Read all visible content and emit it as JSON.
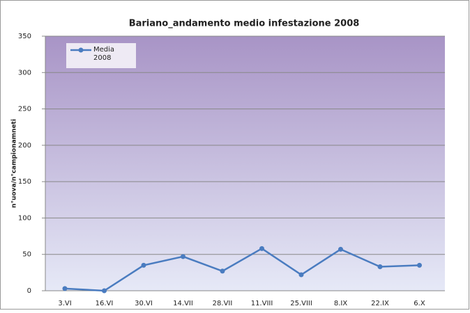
{
  "chart_data": {
    "type": "line",
    "title": "Bariano_andamento medio infestazione 2008",
    "y_label": "n°uova/n°campionamneti",
    "categories": [
      "3.VI",
      "16.VI",
      "30.VI",
      "14.VII",
      "28.VII",
      "11.VIII",
      "25.VIII",
      "8.IX",
      "22.IX",
      "6.X"
    ],
    "series": [
      {
        "name": "Media 2008",
        "color": "#4a7cc0",
        "values": [
          3,
          0,
          35,
          47,
          27,
          58,
          22,
          57,
          33,
          35
        ]
      }
    ],
    "ylim": [
      0,
      350
    ],
    "yticks": [
      0,
      50,
      100,
      150,
      200,
      250,
      300,
      350
    ],
    "grid": true,
    "legend": "top-left"
  }
}
